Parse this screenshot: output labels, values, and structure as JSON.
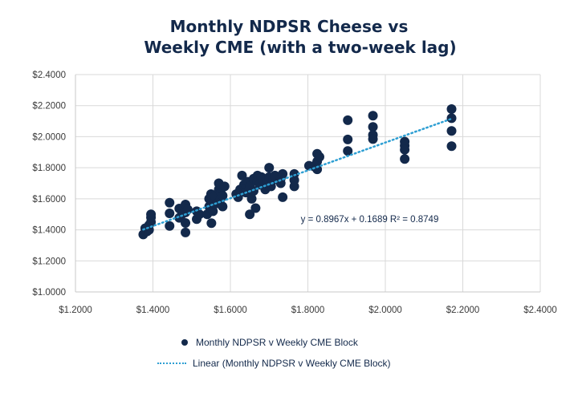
{
  "title": {
    "line1": "Monthly NDPSR Cheese vs",
    "line2": "Weekly CME (with a two-week lag)"
  },
  "colors": {
    "marker": "#13294B",
    "trendline": "#2E9FD3",
    "grid": "#d9d9d9",
    "title": "#13294B"
  },
  "chart_data": {
    "type": "scatter",
    "title": "Monthly NDPSR Cheese vs Weekly CME (with a two-week lag)",
    "xlabel": "",
    "ylabel": "",
    "xlim": [
      1.2,
      2.4
    ],
    "ylim": [
      1.0,
      2.4
    ],
    "grid": true,
    "x_ticks": [
      "$1.2000",
      "$1.4000",
      "$1.6000",
      "$1.8000",
      "$2.0000",
      "$2.2000",
      "$2.4000"
    ],
    "x_tick_values": [
      1.2,
      1.4,
      1.6,
      1.8,
      2.0,
      2.2,
      2.4
    ],
    "y_ticks": [
      "$1.0000",
      "$1.2000",
      "$1.4000",
      "$1.6000",
      "$1.8000",
      "$2.0000",
      "$2.2000",
      "$2.4000"
    ],
    "y_tick_values": [
      1.0,
      1.2,
      1.4,
      1.6,
      1.8,
      2.0,
      2.2,
      2.4
    ],
    "legend_position": "bottom",
    "series": [
      {
        "name": "Monthly NDPSR v Weekly CME Block",
        "kind": "scatter",
        "points": [
          [
            1.375,
            1.37
          ],
          [
            1.38,
            1.41
          ],
          [
            1.385,
            1.39
          ],
          [
            1.39,
            1.4
          ],
          [
            1.39,
            1.43
          ],
          [
            1.395,
            1.45
          ],
          [
            1.395,
            1.48
          ],
          [
            1.395,
            1.5
          ],
          [
            1.443,
            1.575
          ],
          [
            1.443,
            1.506
          ],
          [
            1.443,
            1.425
          ],
          [
            1.468,
            1.537
          ],
          [
            1.468,
            1.477
          ],
          [
            1.475,
            1.5
          ],
          [
            1.484,
            1.563
          ],
          [
            1.484,
            1.512
          ],
          [
            1.484,
            1.444
          ],
          [
            1.484,
            1.383
          ],
          [
            1.49,
            1.53
          ],
          [
            1.513,
            1.52
          ],
          [
            1.513,
            1.469
          ],
          [
            1.52,
            1.5
          ],
          [
            1.54,
            1.5
          ],
          [
            1.545,
            1.55
          ],
          [
            1.545,
            1.6
          ],
          [
            1.55,
            1.63
          ],
          [
            1.551,
            1.443
          ],
          [
            1.555,
            1.52
          ],
          [
            1.56,
            1.58
          ],
          [
            1.56,
            1.62
          ],
          [
            1.565,
            1.57
          ],
          [
            1.57,
            1.66
          ],
          [
            1.57,
            1.7
          ],
          [
            1.575,
            1.64
          ],
          [
            1.575,
            1.6
          ],
          [
            1.58,
            1.55
          ],
          [
            1.58,
            1.62
          ],
          [
            1.585,
            1.68
          ],
          [
            1.615,
            1.63
          ],
          [
            1.62,
            1.61
          ],
          [
            1.625,
            1.66
          ],
          [
            1.63,
            1.75
          ],
          [
            1.635,
            1.69
          ],
          [
            1.64,
            1.67
          ],
          [
            1.64,
            1.64
          ],
          [
            1.645,
            1.71
          ],
          [
            1.65,
            1.68
          ],
          [
            1.65,
            1.5
          ],
          [
            1.655,
            1.6
          ],
          [
            1.66,
            1.73
          ],
          [
            1.66,
            1.65
          ],
          [
            1.665,
            1.54
          ],
          [
            1.67,
            1.75
          ],
          [
            1.67,
            1.71
          ],
          [
            1.675,
            1.69
          ],
          [
            1.68,
            1.74
          ],
          [
            1.685,
            1.72
          ],
          [
            1.69,
            1.66
          ],
          [
            1.695,
            1.7
          ],
          [
            1.7,
            1.8
          ],
          [
            1.7,
            1.74
          ],
          [
            1.705,
            1.68
          ],
          [
            1.71,
            1.72
          ],
          [
            1.715,
            1.75
          ],
          [
            1.73,
            1.7
          ],
          [
            1.73,
            1.73
          ],
          [
            1.735,
            1.76
          ],
          [
            1.735,
            1.61
          ],
          [
            1.765,
            1.76
          ],
          [
            1.765,
            1.72
          ],
          [
            1.765,
            1.68
          ],
          [
            1.803,
            1.813
          ],
          [
            1.815,
            1.81
          ],
          [
            1.824,
            1.89
          ],
          [
            1.824,
            1.84
          ],
          [
            1.824,
            1.79
          ],
          [
            1.83,
            1.87
          ],
          [
            1.903,
            2.106
          ],
          [
            1.903,
            1.982
          ],
          [
            1.903,
            1.908
          ],
          [
            1.968,
            2.135
          ],
          [
            1.968,
            2.063
          ],
          [
            1.968,
            2.011
          ],
          [
            1.968,
            1.985
          ],
          [
            2.05,
            1.968
          ],
          [
            2.05,
            1.942
          ],
          [
            2.05,
            1.916
          ],
          [
            2.05,
            1.856
          ],
          [
            2.171,
            2.178
          ],
          [
            2.171,
            2.119
          ],
          [
            2.171,
            2.037
          ],
          [
            2.171,
            1.939
          ]
        ]
      },
      {
        "name": "Linear (Monthly NDPSR v Weekly CME Block)",
        "kind": "trendline",
        "slope": 0.8967,
        "intercept": 0.1689,
        "r_squared": 0.8749,
        "x_range": [
          1.375,
          2.171
        ]
      }
    ],
    "annotations": [
      {
        "text": "y = 0.8967x + 0.1689  R² = 0.8749",
        "near_x": 1.79,
        "near_y": 1.47
      }
    ]
  },
  "legend": {
    "items": [
      {
        "label": "Monthly NDPSR v Weekly CME Block",
        "marker": "dot"
      },
      {
        "label": "Linear (Monthly NDPSR v Weekly CME Block)",
        "marker": "dotted-line"
      }
    ]
  }
}
